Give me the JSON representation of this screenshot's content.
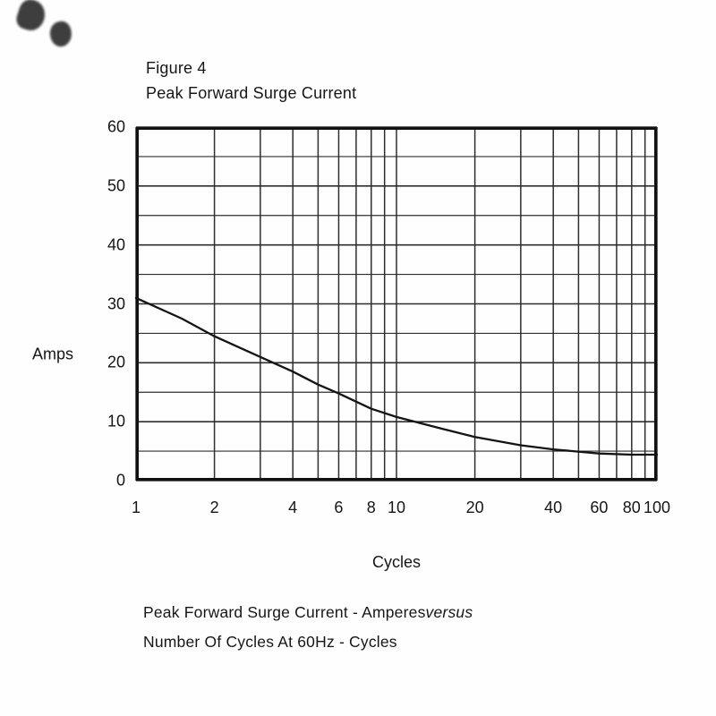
{
  "figure": {
    "title_line1": "Figure 4",
    "title_line2": "Peak Forward Surge Current",
    "ylabel": "Amps",
    "xlabel": "Cycles",
    "caption_normal": "Peak Forward Surge Current - Amperes",
    "caption_italic": "versus",
    "caption_line2": "Number Of Cycles At 60Hz - Cycles"
  },
  "chart_data": {
    "type": "line",
    "title": "Figure 4 - Peak Forward Surge Current",
    "xlabel": "Cycles",
    "ylabel": "Amps",
    "x_scale": "log",
    "xlim": [
      1,
      100
    ],
    "ylim": [
      0,
      60
    ],
    "x_ticks": [
      1,
      2,
      4,
      6,
      8,
      10,
      20,
      40,
      60,
      80,
      100
    ],
    "y_ticks": [
      0,
      10,
      20,
      30,
      40,
      50,
      60
    ],
    "x_gridlines": [
      1,
      2,
      3,
      4,
      5,
      6,
      7,
      8,
      9,
      10,
      20,
      30,
      40,
      50,
      60,
      70,
      80,
      90,
      100
    ],
    "y_gridlines_major": [
      0,
      10,
      20,
      30,
      40,
      50,
      60
    ],
    "y_gridlines_minor": [
      5,
      15,
      25,
      35,
      45,
      55
    ],
    "grid": true,
    "legend": false,
    "line_color": "#141414",
    "grid_color": "#2e2e2e",
    "border_color": "#111111",
    "series": [
      {
        "name": "peak-forward-surge-current",
        "x": [
          1,
          1.5,
          2,
          3,
          4,
          5,
          6,
          8,
          10,
          15,
          20,
          30,
          40,
          60,
          80,
          100
        ],
        "values": [
          31,
          27.5,
          24.5,
          21,
          18.5,
          16.3,
          14.8,
          12.2,
          10.8,
          8.8,
          7.4,
          6,
          5.3,
          4.6,
          4.4,
          4.4
        ]
      }
    ]
  }
}
